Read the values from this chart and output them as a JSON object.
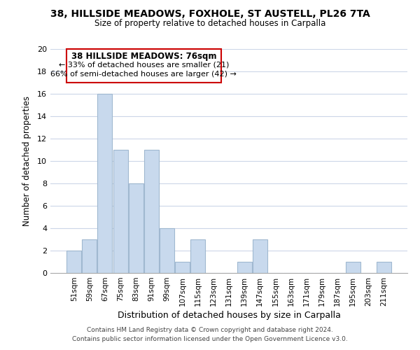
{
  "title": "38, HILLSIDE MEADOWS, FOXHOLE, ST AUSTELL, PL26 7TA",
  "subtitle": "Size of property relative to detached houses in Carpalla",
  "xlabel": "Distribution of detached houses by size in Carpalla",
  "ylabel": "Number of detached properties",
  "bar_labels": [
    "51sqm",
    "59sqm",
    "67sqm",
    "75sqm",
    "83sqm",
    "91sqm",
    "99sqm",
    "107sqm",
    "115sqm",
    "123sqm",
    "131sqm",
    "139sqm",
    "147sqm",
    "155sqm",
    "163sqm",
    "171sqm",
    "179sqm",
    "187sqm",
    "195sqm",
    "203sqm",
    "211sqm"
  ],
  "bar_values": [
    2,
    3,
    16,
    11,
    8,
    11,
    4,
    1,
    3,
    0,
    0,
    1,
    3,
    0,
    0,
    0,
    0,
    0,
    1,
    0,
    1
  ],
  "bar_color": "#c8d9ed",
  "bar_edge_color": "#a0b8d0",
  "ylim": [
    0,
    20
  ],
  "yticks": [
    0,
    2,
    4,
    6,
    8,
    10,
    12,
    14,
    16,
    18,
    20
  ],
  "annotation_title": "38 HILLSIDE MEADOWS: 76sqm",
  "annotation_line1": "← 33% of detached houses are smaller (21)",
  "annotation_line2": "66% of semi-detached houses are larger (42) →",
  "annotation_box_color": "#ffffff",
  "annotation_box_edge": "#cc0000",
  "footer1": "Contains HM Land Registry data © Crown copyright and database right 2024.",
  "footer2": "Contains public sector information licensed under the Open Government Licence v3.0.",
  "background_color": "#ffffff",
  "grid_color": "#ccd6e8"
}
